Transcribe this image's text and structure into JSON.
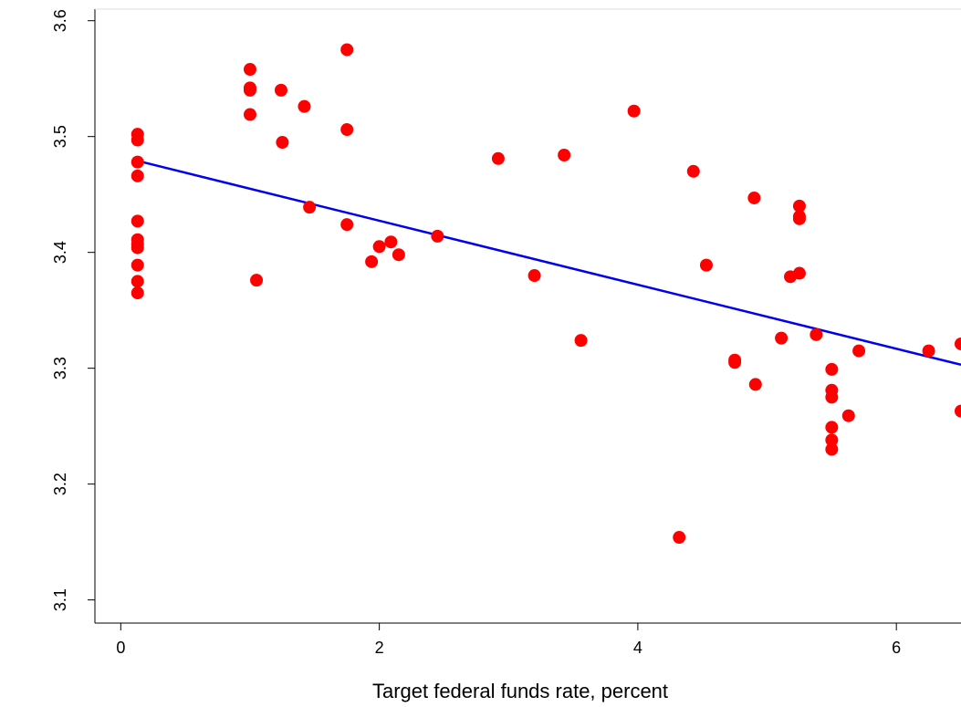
{
  "chart_data": {
    "type": "scatter",
    "title": "",
    "xlabel": "Target federal funds rate, percent",
    "ylabel": "",
    "xlim": [
      -0.2,
      6.5
    ],
    "ylim": [
      3.08,
      3.61
    ],
    "x_ticks": [
      0,
      2,
      4,
      6
    ],
    "y_ticks": [
      3.1,
      3.2,
      3.3,
      3.4,
      3.5,
      3.6
    ],
    "x_tick_labels": [
      "0",
      "2",
      "4",
      "6"
    ],
    "y_tick_labels": [
      "3.1",
      "3.2",
      "3.3",
      "3.4",
      "3.5",
      "3.6"
    ],
    "grid": false,
    "legend": "none",
    "colors": {
      "points": "#ff0000",
      "fit_line": "#0000ee",
      "axis": "#000000",
      "background": "#ffffff"
    },
    "series": [
      {
        "kind": "points",
        "x": [
          0.13,
          0.13,
          0.13,
          0.13,
          0.13,
          0.13,
          0.13,
          0.13,
          0.13,
          0.13,
          0.13,
          1.0,
          1.0,
          1.0,
          1.0,
          1.05,
          1.24,
          1.25,
          1.42,
          1.46,
          1.75,
          1.75,
          1.75,
          1.94,
          2.0,
          2.09,
          2.15,
          2.45,
          2.92,
          3.2,
          3.43,
          3.56,
          3.97,
          4.32,
          4.43,
          4.53,
          4.75,
          4.75,
          4.9,
          4.91,
          5.11,
          5.18,
          5.25,
          5.25,
          5.25,
          5.25,
          5.38,
          5.5,
          5.5,
          5.5,
          5.5,
          5.5,
          5.5,
          5.63,
          5.71,
          6.25,
          6.5,
          6.5
        ],
        "y": [
          3.502,
          3.497,
          3.478,
          3.466,
          3.427,
          3.411,
          3.407,
          3.404,
          3.389,
          3.375,
          3.365,
          3.558,
          3.542,
          3.54,
          3.519,
          3.376,
          3.54,
          3.495,
          3.526,
          3.439,
          3.575,
          3.506,
          3.424,
          3.392,
          3.405,
          3.409,
          3.398,
          3.414,
          3.481,
          3.38,
          3.484,
          3.324,
          3.522,
          3.154,
          3.47,
          3.389,
          3.307,
          3.305,
          3.447,
          3.286,
          3.326,
          3.379,
          3.44,
          3.431,
          3.429,
          3.382,
          3.329,
          3.299,
          3.281,
          3.275,
          3.249,
          3.238,
          3.23,
          3.259,
          3.315,
          3.315,
          3.321,
          3.263
        ]
      },
      {
        "kind": "fit_line",
        "x": [
          0.13,
          6.5
        ],
        "y": [
          3.479,
          3.303
        ]
      }
    ]
  }
}
